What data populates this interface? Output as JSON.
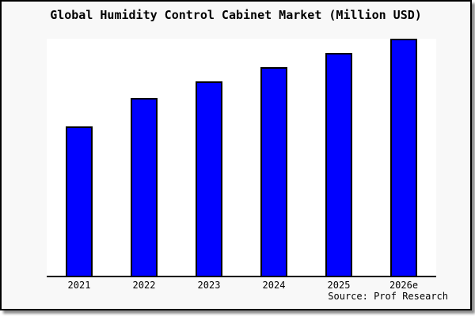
{
  "title": "Global Humidity Control Cabinet Market (Million USD)",
  "source": "Source: Prof Research",
  "colors": {
    "bar_fill": "#0000ff",
    "bar_border": "#000000",
    "card_background": "#f8f8f8",
    "plot_background": "#ffffff",
    "axis_line": "#000000",
    "outer_border": "#000000",
    "shadow": "#8c8c8c",
    "text": "#000000"
  },
  "chart_data": {
    "type": "bar",
    "title": "Global Humidity Control Cabinet Market (Million USD)",
    "categories": [
      "2021",
      "2022",
      "2023",
      "2024",
      "2025",
      "2026e"
    ],
    "values": [
      63,
      75,
      82,
      88,
      94,
      100
    ],
    "xlabel": "",
    "ylabel": "",
    "ylim": [
      0,
      100
    ],
    "grid": false,
    "legend": false,
    "y_axis_shown": false,
    "source": "Source: Prof Research"
  }
}
